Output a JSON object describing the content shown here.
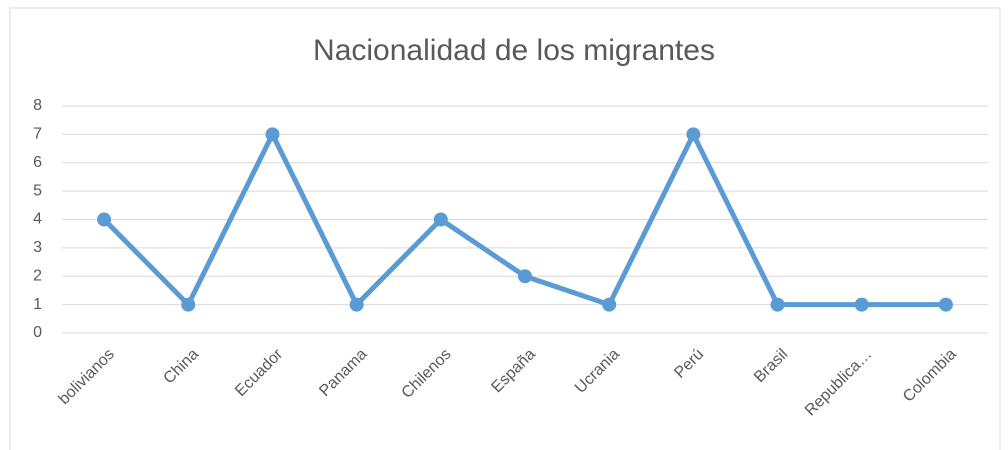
{
  "chart_data": {
    "type": "line",
    "title": "Nacionalidad de los migrantes",
    "categories": [
      "bolivianos",
      "China",
      "Ecuador",
      "Panama",
      "Chilenos",
      "España",
      "Ucrania",
      "Perú",
      "Brasil",
      "Republica…",
      "Colombia"
    ],
    "series": [
      {
        "name": "Nacionalidad",
        "color": "#5b9bd5",
        "values": [
          4,
          1,
          7,
          1,
          4,
          2,
          1,
          7,
          1,
          1,
          1
        ]
      }
    ],
    "ylim": [
      0,
      8
    ],
    "yticks": [
      0,
      1,
      2,
      3,
      4,
      5,
      6,
      7,
      8
    ],
    "grid": true
  }
}
